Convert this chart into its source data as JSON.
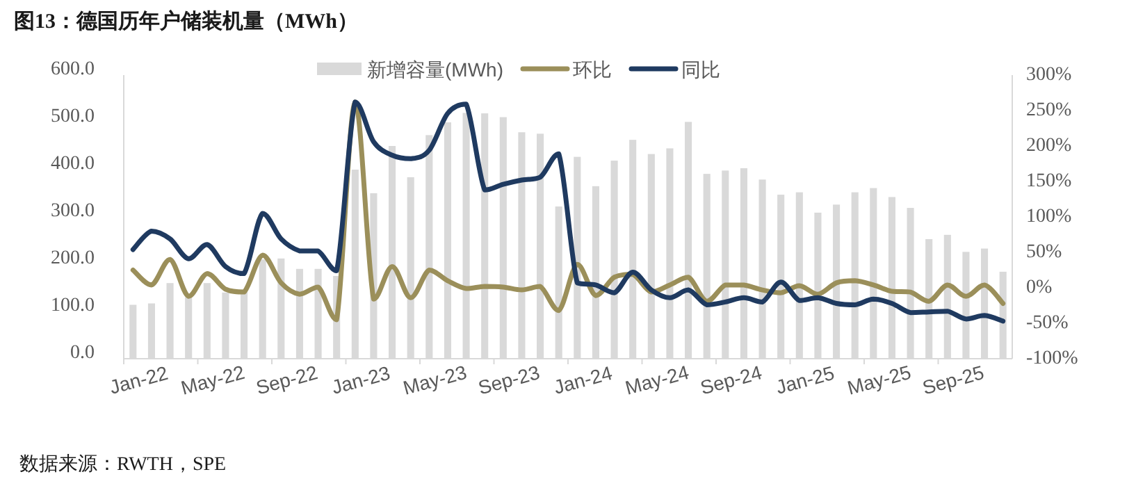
{
  "chart_data": {
    "type": "bar",
    "title": "图13：德国历年户储装机量（MWh）",
    "categories": [
      "Jan-22",
      null,
      null,
      null,
      "May-22",
      null,
      null,
      null,
      "Sep-22",
      null,
      null,
      null,
      "Jan-23",
      null,
      null,
      null,
      "May-23",
      null,
      null,
      null,
      "Sep-23",
      null,
      null,
      null,
      "Jan-24",
      null,
      null,
      null,
      "May-24",
      null,
      null,
      null,
      "Sep-24",
      null,
      null,
      null,
      "Jan-25",
      null,
      null,
      null,
      "May-25",
      null,
      null,
      null,
      "Sep-25",
      null,
      null,
      null
    ],
    "series": [
      {
        "name": "新增容量(MWh)",
        "color": "#d9d9d9",
        "values": [
          114,
          117,
          160,
          130,
          160,
          140,
          145,
          210,
          212,
          190,
          190,
          175,
          400,
          350,
          450,
          384,
          473,
          500,
          520,
          519,
          511,
          479,
          476,
          322,
          427,
          365,
          419,
          463,
          433,
          445,
          501,
          391,
          398,
          403,
          379,
          347,
          352,
          309,
          326,
          352,
          361,
          342,
          319,
          253,
          262,
          226,
          233,
          184
        ]
      },
      {
        "name": "环比",
        "type": "line",
        "axis": "y2",
        "color": "#9b8f5a",
        "values": [
          25,
          4,
          40,
          -12,
          20,
          -2,
          -6,
          46,
          7,
          -9,
          1,
          -45,
          262,
          -16,
          30,
          -14,
          25,
          10,
          -1,
          2,
          1,
          -3,
          2,
          -32,
          33,
          -11,
          15,
          19,
          -6,
          4,
          15,
          -19,
          4,
          4,
          -3,
          -7,
          3,
          -9,
          7,
          10,
          4,
          -5,
          -6,
          -19,
          4,
          -12,
          4,
          -22
        ]
      },
      {
        "name": "同比",
        "type": "line",
        "axis": "y2",
        "color": "#1f3a60",
        "values": [
          54,
          80,
          69,
          41,
          61,
          30,
          20,
          105,
          69,
          52,
          52,
          24,
          262,
          206,
          187,
          182,
          194,
          246,
          259,
          138,
          146,
          152,
          156,
          189,
          7,
          4,
          -7,
          22,
          -3,
          -14,
          -3,
          -24,
          -20,
          -14,
          -20,
          8,
          -18,
          -14,
          -22,
          -24,
          -16,
          -22,
          -35,
          -34,
          -33,
          -44,
          -39,
          -47
        ]
      }
    ],
    "ylim": [
      0,
      600
    ],
    "yticks": [
      {
        "value": 0,
        "label": "0.0"
      },
      {
        "value": 100,
        "label": "100.0"
      },
      {
        "value": 200,
        "label": "200.0"
      },
      {
        "value": 300,
        "label": "300.0"
      },
      {
        "value": 400,
        "label": "400.0"
      },
      {
        "value": 500,
        "label": "500.0"
      },
      {
        "value": 600,
        "label": "600.0"
      }
    ],
    "y2lim": [
      -100,
      300
    ],
    "y2ticks": [
      {
        "value": -100,
        "label": "-100%"
      },
      {
        "value": -50,
        "label": "-50%"
      },
      {
        "value": 0,
        "label": "0%"
      },
      {
        "value": 50,
        "label": "50%"
      },
      {
        "value": 100,
        "label": "100%"
      },
      {
        "value": 150,
        "label": "150%"
      },
      {
        "value": 200,
        "label": "200%"
      },
      {
        "value": 250,
        "label": "250%"
      },
      {
        "value": 300,
        "label": "300%"
      }
    ],
    "legend": "top",
    "annotations": [
      "数据来源：RWTH，SPE"
    ]
  }
}
